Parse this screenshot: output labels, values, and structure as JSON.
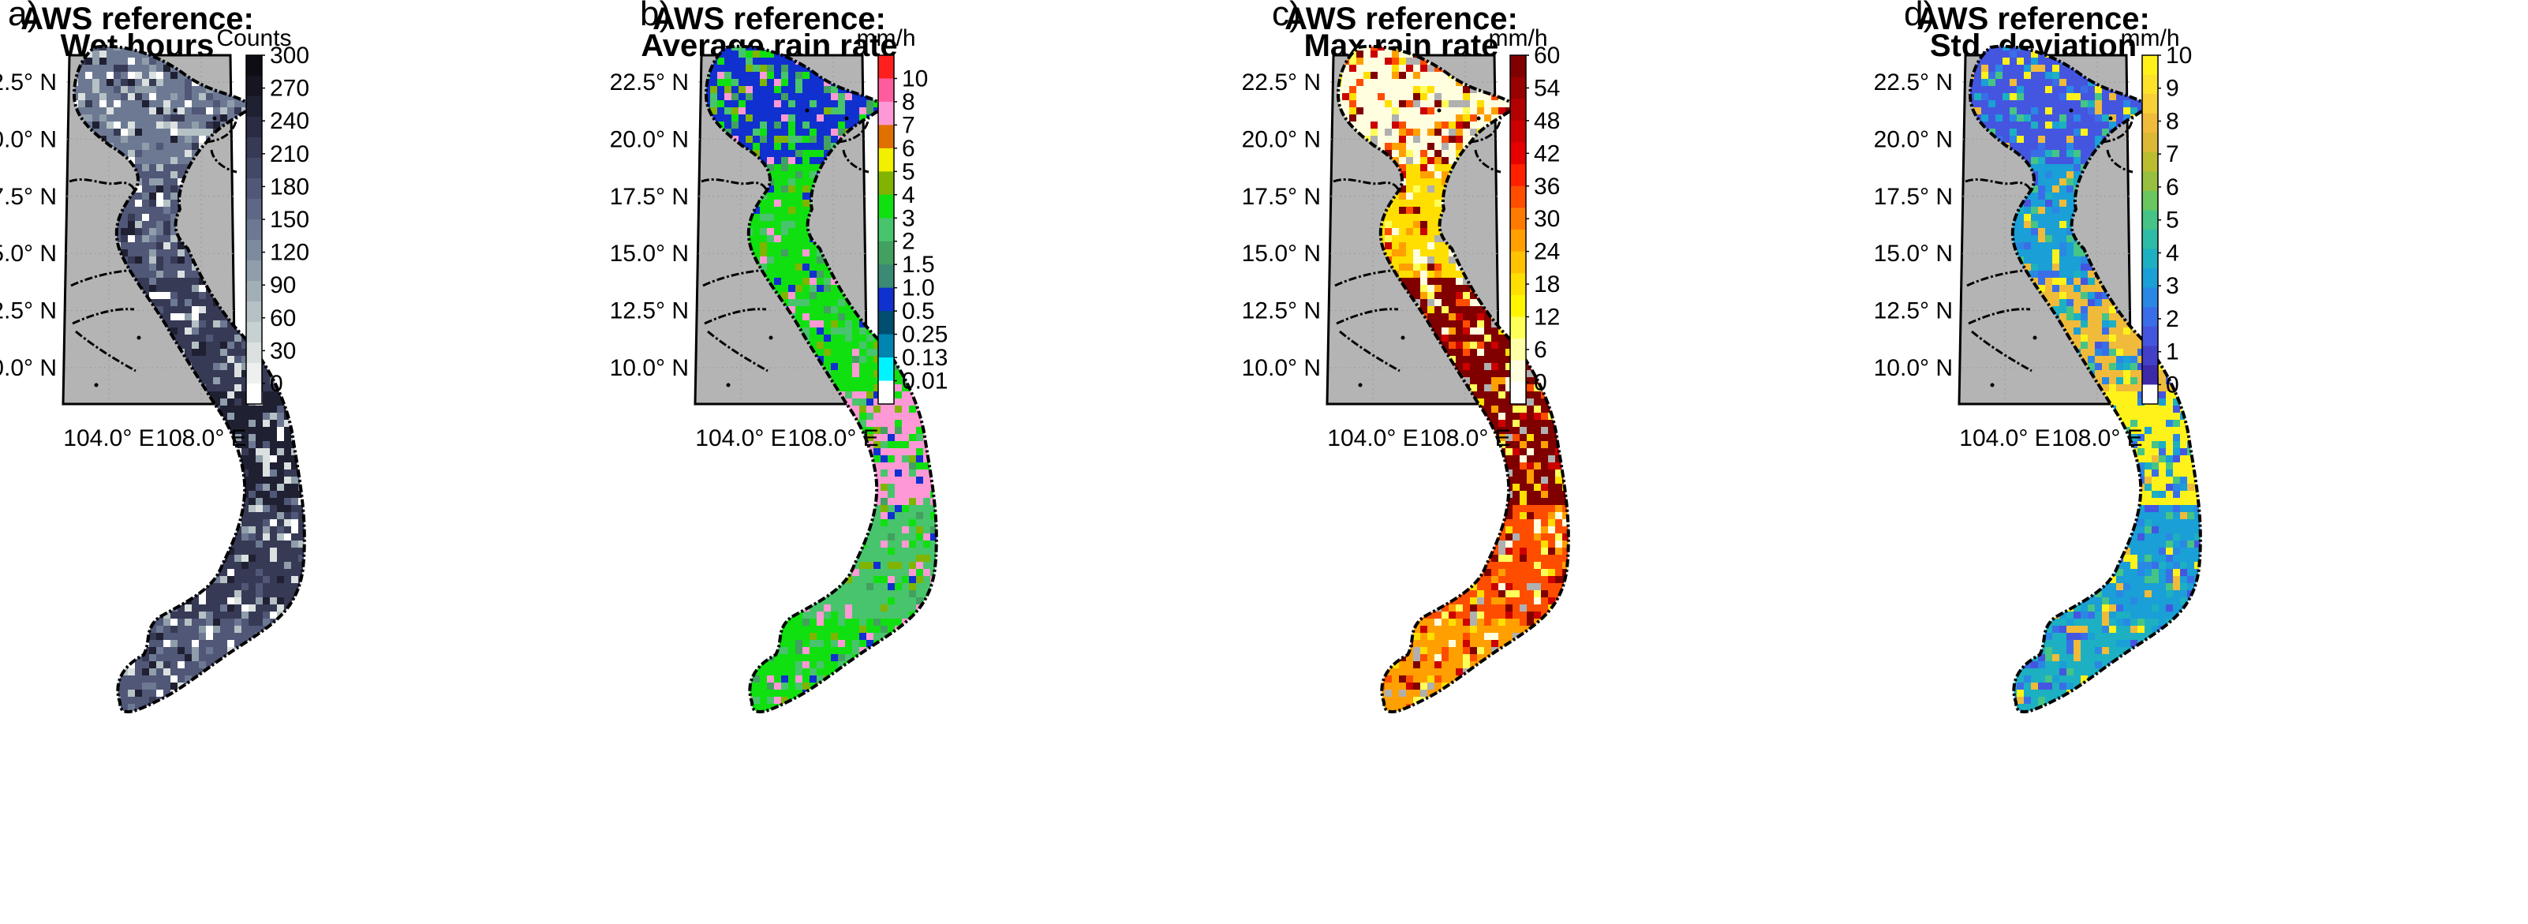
{
  "figure": {
    "panels": [
      {
        "letter": "a)",
        "title_line1": "AWS reference:",
        "title_line2": "Wet hours",
        "unit": "Counts",
        "colorbar": {
          "type": "sequential",
          "labels": [
            "300",
            "270",
            "240",
            "210",
            "180",
            "150",
            "120",
            "90",
            "60",
            "30",
            "0"
          ],
          "colors_top_to_bottom": [
            "#0d0d14",
            "#161622",
            "#202033",
            "#2b2c44",
            "#373a55",
            "#434866",
            "#505777",
            "#5e6886",
            "#6d7993",
            "#7d8b9f",
            "#8f9eaa",
            "#a2afb7",
            "#b5c1c4",
            "#c8d1d2",
            "#dbe1e0",
            "#edf0ef",
            "#ffffff"
          ]
        },
        "map_palette": [
          "#202033",
          "#373a55",
          "#505777",
          "#6d7993",
          "#8f9eaa",
          "#b5c1c4",
          "#dbe1e0",
          "#ffffff"
        ],
        "region_bias": [
          3,
          2,
          1,
          0,
          1,
          2
        ]
      },
      {
        "letter": "b)",
        "title_line1": "AWS reference:",
        "title_line2": "Average rain rate",
        "unit": "mm/h",
        "colorbar": {
          "type": "categorical",
          "labels": [
            "10",
            "8",
            "7",
            "6",
            "5",
            "4",
            "3",
            "2",
            "1.5",
            "1.0",
            "0.5",
            "0.25",
            "0.13",
            "0.01"
          ],
          "colors_top_to_bottom": [
            "#ff1f1f",
            "#ff5c9e",
            "#ff99d6",
            "#e07000",
            "#f0f000",
            "#80b400",
            "#10e010",
            "#48c46c",
            "#42a060",
            "#3a8a76",
            "#1030d0",
            "#004e70",
            "#0084b0",
            "#00f4ff",
            "#ffffff"
          ]
        },
        "map_palette": [
          "#10e010",
          "#48c46c",
          "#42a060",
          "#10e010",
          "#48c46c",
          "#1030d0",
          "#80b400",
          "#ff99d6"
        ],
        "region_bias": [
          5,
          0,
          0,
          7,
          1,
          0
        ]
      },
      {
        "letter": "c)",
        "title_line1": "AWS reference:",
        "title_line2": "Max rain rate",
        "unit": "mm/h",
        "colorbar": {
          "type": "sequential",
          "labels": [
            "60",
            "54",
            "48",
            "42",
            "36",
            "30",
            "24",
            "18",
            "12",
            "6",
            "0"
          ],
          "colors_top_to_bottom": [
            "#800000",
            "#990000",
            "#b30000",
            "#cc0000",
            "#e60000",
            "#ff2000",
            "#ff4d00",
            "#ff7a00",
            "#ffa000",
            "#ffc200",
            "#ffdf00",
            "#fff500",
            "#ffff5a",
            "#ffffa8",
            "#ffffe0",
            "#ffffff"
          ]
        },
        "map_palette": [
          "#800000",
          "#cc0000",
          "#ff4d00",
          "#ffa000",
          "#ffdf00",
          "#ffff5a",
          "#ffffe0",
          "#b0b0b0"
        ],
        "region_bias": [
          6,
          4,
          0,
          0,
          2,
          3
        ]
      },
      {
        "letter": "d)",
        "title_line1": "AWS reference:",
        "title_line2": "Std. deviation",
        "unit": "mm/h",
        "colorbar": {
          "type": "sequential",
          "labels": [
            "10",
            "9",
            "8",
            "7",
            "6",
            "5",
            "4",
            "3",
            "2",
            "1",
            "0"
          ],
          "colors_top_to_bottom": [
            "#fff21a",
            "#fde22a",
            "#f8cf34",
            "#f0bb3a",
            "#dbb934",
            "#bcbc30",
            "#98c040",
            "#6cc660",
            "#46c486",
            "#2ebca6",
            "#1cb0c2",
            "#1a9fd6",
            "#2a88e4",
            "#3a6ee8",
            "#4456e0",
            "#4340c8",
            "#3c2aa8",
            "#ffffff"
          ]
        },
        "map_palette": [
          "#3a6ee8",
          "#2a88e4",
          "#1a9fd6",
          "#1cb0c2",
          "#46c486",
          "#f0bb3a",
          "#fff21a",
          "#4456e0"
        ],
        "region_bias": [
          7,
          2,
          5,
          6,
          2,
          3
        ]
      }
    ],
    "axes": {
      "lat_labels": [
        "22.5° N",
        "20.0° N",
        "17.5° N",
        "15.0° N",
        "12.5° N",
        "10.0° N"
      ],
      "lon_labels": [
        "104.0° E",
        "108.0° E"
      ],
      "lat_values": [
        22.5,
        20.0,
        17.5,
        15.0,
        12.5,
        10.0
      ],
      "lon_values": [
        104.0,
        108.0
      ]
    },
    "colors": {
      "map_background": "#b4b4b4",
      "border": "#000000",
      "no_data": "#a8a8a8"
    }
  }
}
